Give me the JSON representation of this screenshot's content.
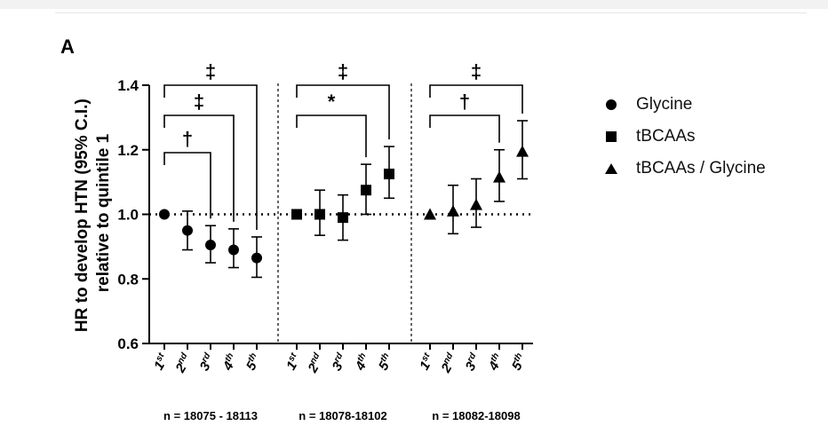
{
  "panel_label": "A",
  "chart_data": {
    "type": "scatter",
    "title": "",
    "ylabel": "HR to develop HTN (95% C.I.) relative to quintile 1",
    "ylim": [
      0.6,
      1.4
    ],
    "yticks": [
      "0.6",
      "0.8",
      "1.0",
      "1.2",
      "1.4"
    ],
    "reference_line": 1.0,
    "categories": [
      {
        "main": "1",
        "sup": "st"
      },
      {
        "main": "2",
        "sup": "nd"
      },
      {
        "main": "3",
        "sup": "rd"
      },
      {
        "main": "4",
        "sup": "th"
      },
      {
        "main": "5",
        "sup": "th"
      }
    ],
    "series": [
      {
        "name": "Glycine",
        "marker": "circle",
        "values": [
          1.0,
          0.95,
          0.905,
          0.89,
          0.865
        ],
        "ci_low": [
          1.0,
          0.89,
          0.85,
          0.835,
          0.805
        ],
        "ci_high": [
          1.0,
          1.01,
          0.965,
          0.955,
          0.93
        ],
        "n_label": "n = 18075 - 18113",
        "brackets": [
          {
            "to": 5,
            "symbol": "‡"
          },
          {
            "to": 4,
            "symbol": "‡"
          },
          {
            "to": 3,
            "symbol": "†"
          }
        ]
      },
      {
        "name": "tBCAAs",
        "marker": "square",
        "values": [
          1.0,
          1.0,
          0.99,
          1.075,
          1.125
        ],
        "ci_low": [
          1.0,
          0.935,
          0.92,
          1.0,
          1.05
        ],
        "ci_high": [
          1.0,
          1.075,
          1.06,
          1.155,
          1.21
        ],
        "n_label": "n = 18078-18102",
        "brackets": [
          {
            "to": 5,
            "symbol": "‡"
          },
          {
            "to": 4,
            "symbol": "*"
          }
        ]
      },
      {
        "name": "tBCAAs / Glycine",
        "marker": "triangle",
        "values": [
          1.0,
          1.01,
          1.03,
          1.115,
          1.195
        ],
        "ci_low": [
          1.0,
          0.94,
          0.96,
          1.04,
          1.11
        ],
        "ci_high": [
          1.0,
          1.09,
          1.11,
          1.2,
          1.29
        ],
        "n_label": "n = 18082-18098",
        "brackets": [
          {
            "to": 5,
            "symbol": "‡"
          },
          {
            "to": 4,
            "symbol": "†"
          }
        ]
      }
    ],
    "legend_position": "right"
  }
}
